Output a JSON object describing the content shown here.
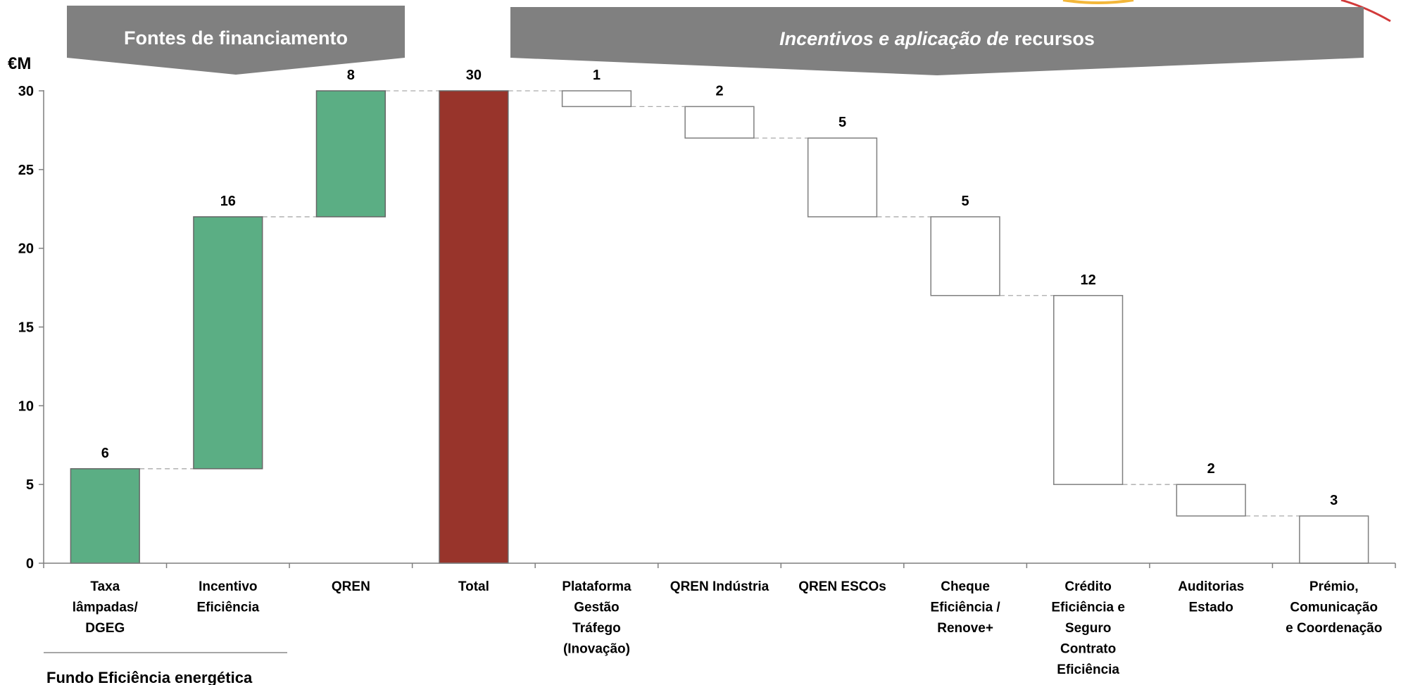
{
  "banners": {
    "left": "Fontes de financiamento",
    "right_italic": "Incentivos e aplicação de",
    "right_normal": "recursos"
  },
  "footer_label": "Fundo Eficiência energética",
  "colors": {
    "banner": "#808080",
    "source_bar": "#5BAE84",
    "total_bar": "#98342B",
    "use_bar_fill": "#ffffff",
    "use_bar_stroke": "#7f7f7f",
    "connector": "#aaaaaa"
  },
  "chart_data": {
    "type": "waterfall",
    "ylabel": "€M",
    "ylim": [
      0,
      30
    ],
    "yticks": [
      0,
      5,
      10,
      15,
      20,
      25,
      30
    ],
    "categories": [
      [
        "Taxa",
        "lâmpadas/",
        "DGEG"
      ],
      [
        "Incentivo",
        "Eficiência"
      ],
      [
        "QREN"
      ],
      [
        "Total"
      ],
      [
        "Plataforma",
        "Gestão",
        "Tráfego",
        "(Inovação)"
      ],
      [
        "QREN Indústria"
      ],
      [
        "QREN ESCOs"
      ],
      [
        "Cheque",
        "Eficiência /",
        "Renove+"
      ],
      [
        "Crédito",
        "Eficiência e",
        "Seguro",
        "Contrato",
        "Eficiência"
      ],
      [
        "Auditorias",
        "Estado"
      ],
      [
        "Prémio,",
        "Comunicação",
        "e Coordenação"
      ]
    ],
    "bars": [
      {
        "kind": "source",
        "start": 0,
        "end": 6,
        "label": "6"
      },
      {
        "kind": "source",
        "start": 6,
        "end": 22,
        "label": "16"
      },
      {
        "kind": "source",
        "start": 22,
        "end": 30,
        "label": "8"
      },
      {
        "kind": "total",
        "start": 0,
        "end": 30,
        "label": "30"
      },
      {
        "kind": "use",
        "start": 29,
        "end": 30,
        "label": "1"
      },
      {
        "kind": "use",
        "start": 27,
        "end": 29,
        "label": "2"
      },
      {
        "kind": "use",
        "start": 22,
        "end": 27,
        "label": "5"
      },
      {
        "kind": "use",
        "start": 17,
        "end": 22,
        "label": "5"
      },
      {
        "kind": "use",
        "start": 5,
        "end": 17,
        "label": "12"
      },
      {
        "kind": "use",
        "start": 3,
        "end": 5,
        "label": "2"
      },
      {
        "kind": "use",
        "start": 0,
        "end": 3,
        "label": "3"
      }
    ]
  }
}
